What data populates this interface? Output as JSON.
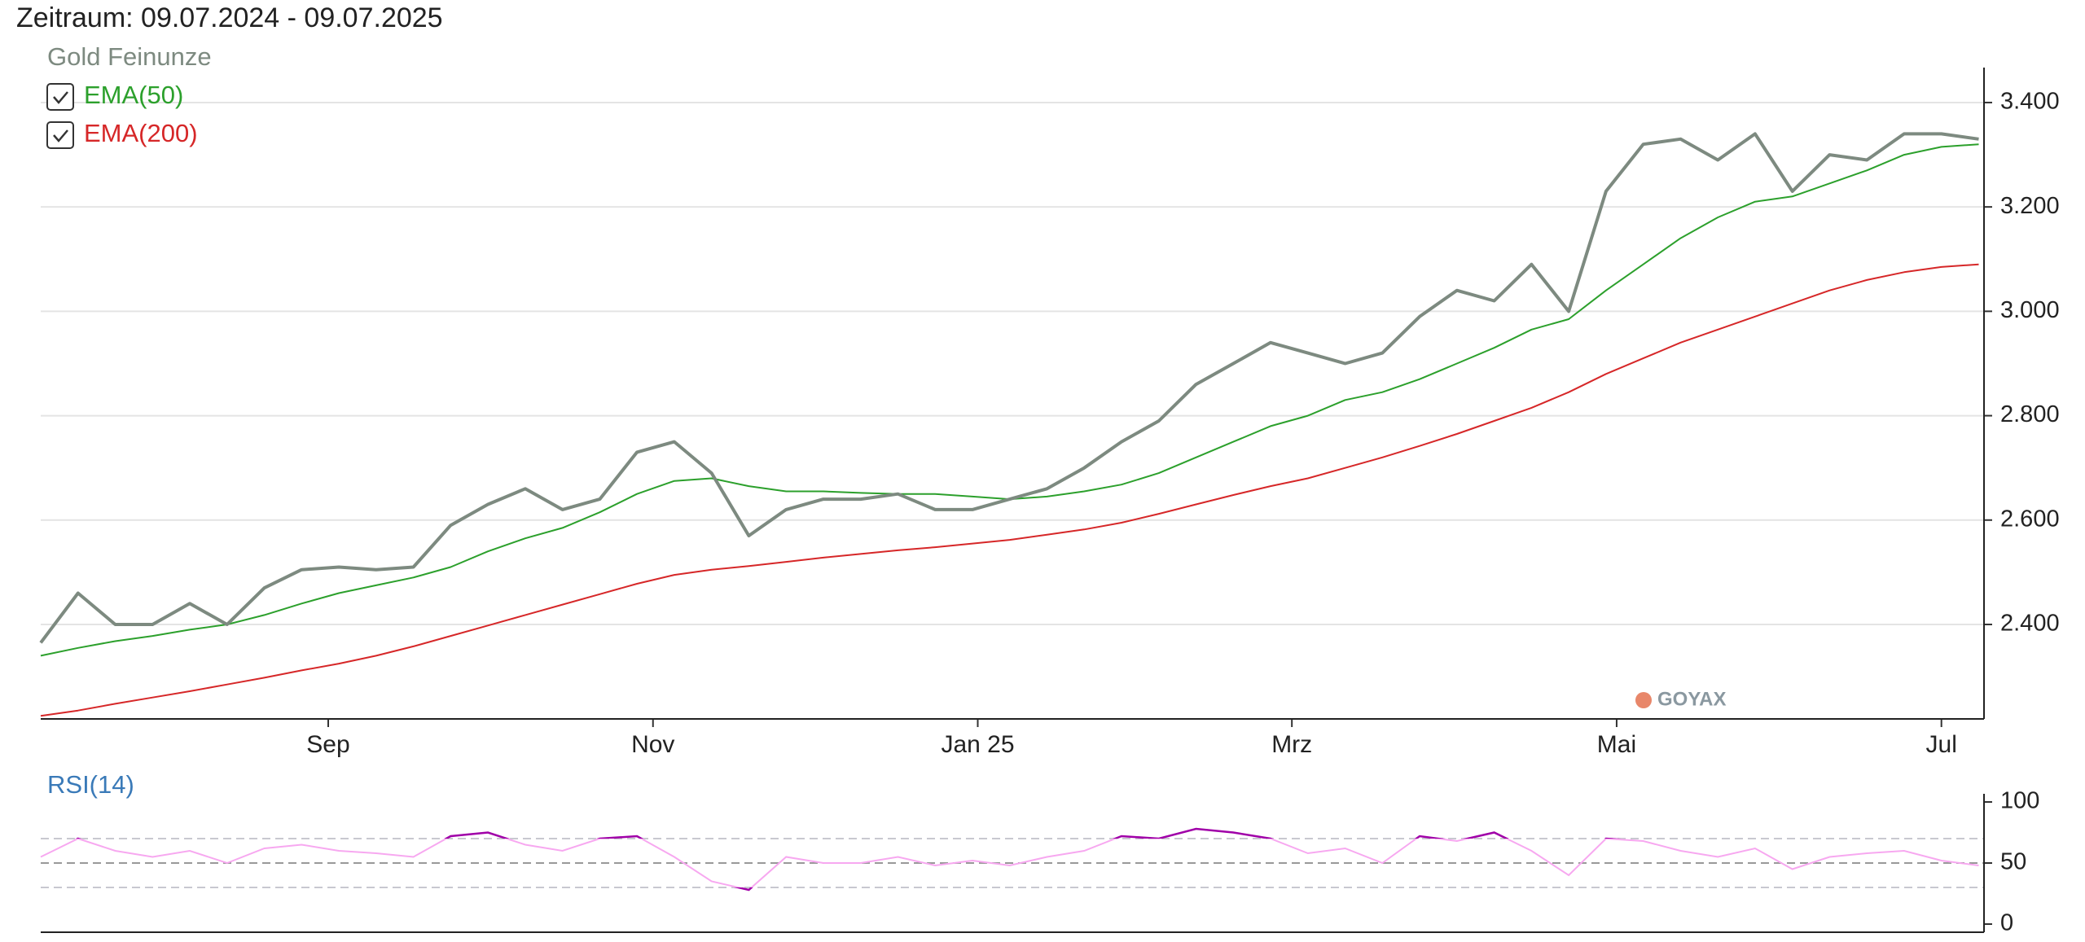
{
  "header": "Zeitraum: 09.07.2024 - 09.07.2025",
  "chart_data": [
    {
      "type": "line",
      "watermark": "GOYAX",
      "x": [
        0,
        7,
        14,
        21,
        28,
        35,
        42,
        49,
        56,
        63,
        70,
        77,
        84,
        91,
        98,
        105,
        112,
        119,
        126,
        133,
        140,
        147,
        154,
        161,
        168,
        175,
        182,
        189,
        196,
        203,
        210,
        217,
        224,
        231,
        238,
        245,
        252,
        259,
        266,
        273,
        280,
        287,
        294,
        301,
        308,
        315,
        322,
        329,
        336,
        343,
        350,
        357,
        364
      ],
      "xlim": [
        0,
        365
      ],
      "xticks": [
        {
          "value": 54,
          "label": "Sep"
        },
        {
          "value": 115,
          "label": "Nov"
        },
        {
          "value": 176,
          "label": "Jan 25"
        },
        {
          "value": 235,
          "label": "Mrz"
        },
        {
          "value": 296,
          "label": "Mai"
        },
        {
          "value": 357,
          "label": "Jul"
        }
      ],
      "ylim": [
        2219,
        3467
      ],
      "yticks": [
        {
          "value": 2400,
          "label": "2.400"
        },
        {
          "value": 2600,
          "label": "2.600"
        },
        {
          "value": 2800,
          "label": "2.800"
        },
        {
          "value": 3000,
          "label": "3.000"
        },
        {
          "value": 3200,
          "label": "3.200"
        },
        {
          "value": 3400,
          "label": "3.400"
        }
      ],
      "grid": true,
      "series": [
        {
          "name": "Gold Feinunze",
          "color": "#7d8a80",
          "values": [
            2365,
            2460,
            2400,
            2400,
            2440,
            2400,
            2470,
            2505,
            2510,
            2505,
            2510,
            2590,
            2630,
            2660,
            2620,
            2640,
            2730,
            2750,
            2690,
            2570,
            2620,
            2640,
            2640,
            2650,
            2620,
            2620,
            2640,
            2660,
            2700,
            2750,
            2790,
            2860,
            2900,
            2940,
            2920,
            2900,
            2920,
            2990,
            3040,
            3020,
            3090,
            3000,
            3230,
            3320,
            3330,
            3290,
            3340,
            3230,
            3300,
            3290,
            3340,
            3340,
            3330
          ]
        },
        {
          "name": "EMA(50)",
          "color": "#2ca02c",
          "checked": true,
          "values": [
            2340,
            2355,
            2368,
            2378,
            2390,
            2400,
            2418,
            2440,
            2460,
            2475,
            2490,
            2510,
            2540,
            2565,
            2585,
            2615,
            2650,
            2675,
            2680,
            2665,
            2655,
            2655,
            2652,
            2650,
            2650,
            2645,
            2640,
            2645,
            2655,
            2668,
            2690,
            2720,
            2750,
            2780,
            2800,
            2830,
            2845,
            2870,
            2900,
            2930,
            2965,
            2985,
            3040,
            3090,
            3140,
            3180,
            3210,
            3220,
            3245,
            3270,
            3300,
            3315,
            3320
          ]
        },
        {
          "name": "EMA(200)",
          "color": "#d62728",
          "checked": true,
          "values": [
            2225,
            2235,
            2248,
            2260,
            2272,
            2285,
            2298,
            2312,
            2325,
            2340,
            2358,
            2378,
            2398,
            2418,
            2438,
            2458,
            2478,
            2495,
            2505,
            2512,
            2520,
            2528,
            2535,
            2542,
            2548,
            2555,
            2562,
            2572,
            2582,
            2595,
            2612,
            2630,
            2648,
            2665,
            2680,
            2700,
            2720,
            2742,
            2765,
            2790,
            2815,
            2845,
            2880,
            2910,
            2940,
            2965,
            2990,
            3015,
            3040,
            3060,
            3075,
            3085,
            3090
          ]
        }
      ]
    },
    {
      "type": "rsi",
      "title": "RSI(14)",
      "x": [
        0,
        7,
        14,
        21,
        28,
        35,
        42,
        49,
        56,
        63,
        70,
        77,
        84,
        91,
        98,
        105,
        112,
        119,
        126,
        133,
        140,
        147,
        154,
        161,
        168,
        175,
        182,
        189,
        196,
        203,
        210,
        217,
        224,
        231,
        238,
        245,
        252,
        259,
        266,
        273,
        280,
        287,
        294,
        301,
        308,
        315,
        322,
        329,
        336,
        343,
        350,
        357,
        364
      ],
      "xlim": [
        0,
        365
      ],
      "ylim": [
        0,
        100
      ],
      "yticks": [
        0,
        50,
        100
      ],
      "levels": [
        30,
        50,
        70
      ],
      "color": "#f7a8f0",
      "extreme_color": "#a000a8",
      "values": [
        55,
        70,
        60,
        55,
        60,
        50,
        62,
        65,
        60,
        58,
        55,
        72,
        75,
        65,
        60,
        70,
        72,
        55,
        35,
        28,
        55,
        50,
        50,
        55,
        48,
        52,
        48,
        55,
        60,
        72,
        70,
        78,
        75,
        70,
        58,
        62,
        50,
        72,
        68,
        75,
        60,
        40,
        70,
        68,
        60,
        55,
        62,
        45,
        55,
        58,
        60,
        52,
        48
      ]
    }
  ]
}
